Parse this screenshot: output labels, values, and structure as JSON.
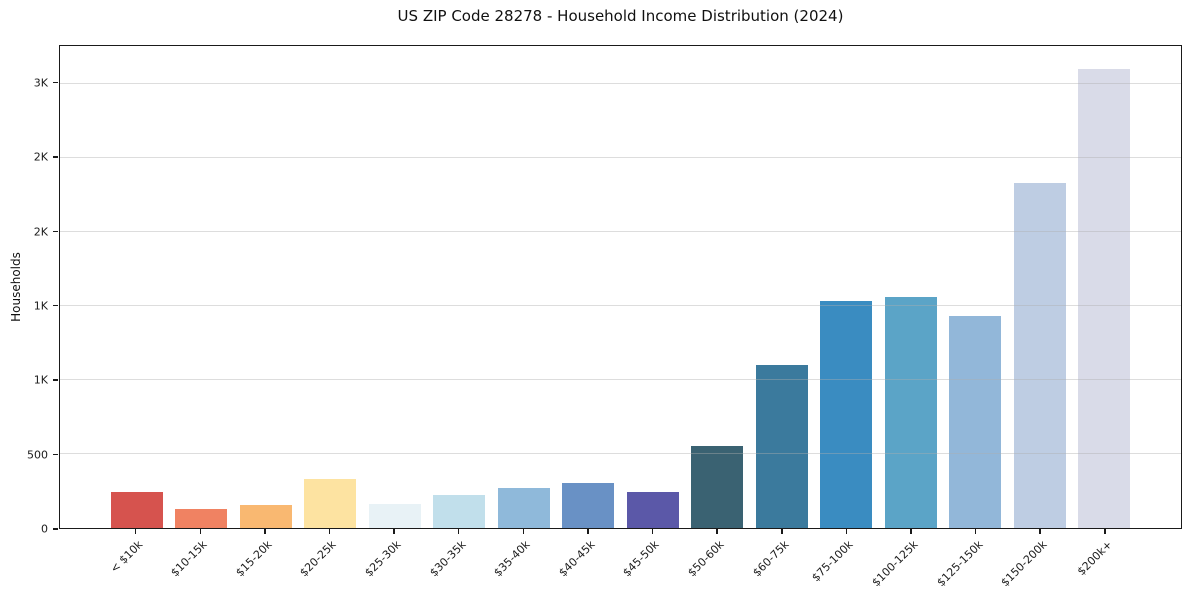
{
  "title": "US ZIP Code 28278 - Household Income Distribution (2024)",
  "chart_data": {
    "type": "bar",
    "title": "US ZIP Code 28278 - Household Income Distribution (2024)",
    "xlabel": "",
    "ylabel": "Households",
    "categories": [
      "< $10k",
      "$10-15k",
      "$15-20k",
      "$20-25k",
      "$25-30k",
      "$30-35k",
      "$35-40k",
      "$40-45k",
      "$45-50k",
      "$50-60k",
      "$60-75k",
      "$75-100k",
      "$100-125k",
      "$125-150k",
      "$150-200k",
      "$200k+"
    ],
    "values": [
      240,
      130,
      155,
      330,
      160,
      225,
      270,
      305,
      245,
      555,
      1100,
      1530,
      1560,
      1430,
      2330,
      3100
    ],
    "bar_colors": [
      "#d6534e",
      "#f08262",
      "#f9b871",
      "#fde3a1",
      "#e8f2f6",
      "#c1dfeb",
      "#8fb9da",
      "#6991c5",
      "#5b58a8",
      "#3a6272",
      "#3b7a9d",
      "#3a8cc1",
      "#5ba4c7",
      "#92b7d9",
      "#becde3",
      "#d9dbe8"
    ],
    "ylim": [
      0,
      3255
    ],
    "ytick_values": [
      0,
      500,
      1000,
      1500,
      2000,
      2500,
      3000
    ],
    "ytick_labels": [
      "0",
      "500",
      "1K",
      "1K",
      "2K",
      "2K",
      "3K"
    ],
    "grid": "horizontal-light-gray",
    "legend": "none",
    "spines": "all-black",
    "xtick_label_rotation_deg": 45
  }
}
